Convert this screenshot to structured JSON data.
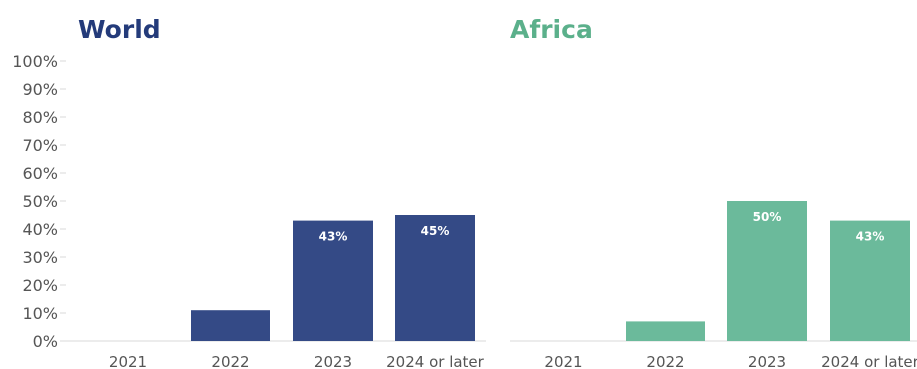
{
  "chart_data": [
    {
      "type": "bar",
      "title": "World",
      "categories": [
        "2021",
        "2022",
        "2023",
        "2024 or later"
      ],
      "values": [
        0,
        11,
        43,
        45
      ],
      "data_labels": [
        "",
        "",
        "43%",
        "45%"
      ],
      "color": "#344a86",
      "title_color": "#243b7a",
      "ylim": [
        0,
        100
      ],
      "yticks": [
        "0%",
        "10%",
        "20%",
        "30%",
        "40%",
        "50%",
        "60%",
        "70%",
        "80%",
        "90%",
        "100%"
      ],
      "xlabel": "",
      "ylabel": "",
      "grid": false
    },
    {
      "type": "bar",
      "title": "Africa",
      "categories": [
        "2021",
        "2022",
        "2023",
        "2024 or later"
      ],
      "values": [
        0,
        7,
        50,
        43
      ],
      "data_labels": [
        "",
        "",
        "50%",
        "43%"
      ],
      "color": "#6bba9b",
      "title_color": "#5bb08b",
      "ylim": [
        0,
        100
      ],
      "xlabel": "",
      "ylabel": "",
      "grid": false
    }
  ]
}
